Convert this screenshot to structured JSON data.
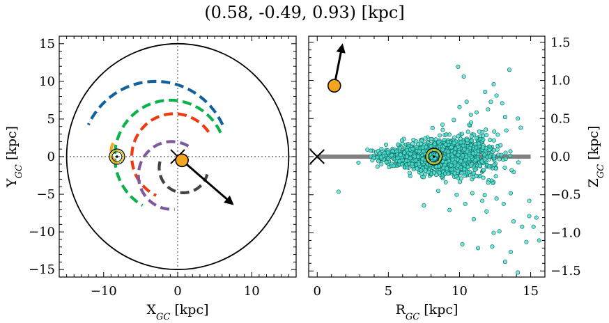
{
  "title": "(0.58, -0.49, 0.93) [kpc]",
  "colors": {
    "blue": "#1461a0",
    "green": "#0bb14a",
    "red": "#ef3a10",
    "purple": "#7f5a9b",
    "dark": "#444444",
    "orange": "#f5a61e",
    "teal": "#46e2d2",
    "sun_ring": "#d4c20a"
  },
  "chart_data": [
    {
      "type": "scatter",
      "panel": "left",
      "xlabel": "X_GC [kpc]",
      "ylabel": "Y_GC [kpc]",
      "xlabel_main": "X",
      "xlabel_sub": "GC",
      "xlabel_unit": " [kpc]",
      "ylabel_main": "Y",
      "ylabel_sub": "GC",
      "ylabel_unit": " [kpc]",
      "xlim": [
        -16,
        16
      ],
      "ylim": [
        -16,
        16
      ],
      "xticks": [
        -10,
        0,
        10
      ],
      "xtick_labels": [
        "−10",
        "0",
        "10"
      ],
      "yticks": [
        -15,
        -10,
        -5,
        0,
        5,
        10,
        15
      ],
      "ytick_labels": [
        "−15",
        "−10",
        "−5",
        "0",
        "5",
        "10",
        "15"
      ],
      "outer_circle_radius": 15,
      "arms": [
        {
          "color": "blue",
          "radius": 10,
          "start_deg": 25,
          "end_deg": 155,
          "cx": -3,
          "cy": 0
        },
        {
          "color": "green",
          "radius": 7.5,
          "start_deg": 25,
          "end_deg": 240,
          "cx": -1,
          "cy": 0
        },
        {
          "color": "red",
          "radius": 5.7,
          "start_deg": 35,
          "end_deg": 245,
          "cx": -0.5,
          "cy": 0
        },
        {
          "color": "purple",
          "radius": 4.5,
          "start_deg": 60,
          "end_deg": 275,
          "cx": -0.8,
          "cy": -2.5
        },
        {
          "color": "dark",
          "radius": 3.3,
          "start_deg": 165,
          "end_deg": 345,
          "cx": 0.8,
          "cy": -1.5
        },
        {
          "color": "orange",
          "radius": 2.2,
          "start_deg": 150,
          "end_deg": 230,
          "cx": -6.8,
          "cy": 0.7
        }
      ],
      "galactic_center": {
        "x": 0,
        "y": 0
      },
      "sun": {
        "x": -8.2,
        "y": 0
      },
      "object": {
        "x": 0.58,
        "y": -0.49
      },
      "velocity_arrow": {
        "x0": 0.58,
        "y0": -0.49,
        "x1": 7.3,
        "y1": -6.2
      }
    },
    {
      "type": "scatter",
      "panel": "right",
      "xlabel": "R_GC [kpc]",
      "ylabel": "Z_GC [kpc]",
      "xlabel_main": "R",
      "xlabel_sub": "GC",
      "xlabel_unit": " [kpc]",
      "ylabel_main": "Z",
      "ylabel_sub": "GC",
      "ylabel_unit": " [kpc]",
      "xlim": [
        -0.6,
        16
      ],
      "ylim": [
        -1.58,
        1.58
      ],
      "xticks": [
        0,
        5,
        10,
        15
      ],
      "xtick_labels": [
        "0",
        "5",
        "10",
        "15"
      ],
      "yticks": [
        -1.5,
        -1.0,
        -0.5,
        0.0,
        0.5,
        1.0,
        1.5
      ],
      "ytick_labels": [
        "−1.5",
        "−1.0",
        "−0.5",
        "0.0",
        "0.5",
        "1.0",
        "1.5"
      ],
      "disk_line": {
        "x0": 0,
        "x1": 15,
        "y": 0
      },
      "galactic_center": {
        "x": 0,
        "y": 0
      },
      "sun": {
        "x": 8.2,
        "y": 0
      },
      "object": {
        "x": 1.2,
        "y": 0.93
      },
      "velocity_arrow": {
        "x0": 1.2,
        "y0": 0.93,
        "x1": 1.75,
        "y1": 1.45
      },
      "star_cloud": {
        "count": 1600,
        "r_center": 8.5,
        "z_spread": 0.12
      },
      "stars": [
        [
          9.9,
          1.18
        ],
        [
          10.3,
          1.05
        ],
        [
          13.5,
          1.14
        ],
        [
          12.6,
          0.8
        ],
        [
          12.0,
          0.62
        ],
        [
          11.8,
          0.85
        ],
        [
          10.5,
          0.72
        ],
        [
          14.3,
          0.38
        ],
        [
          13.2,
          0.52
        ],
        [
          12.4,
          0.95
        ],
        [
          10.8,
          0.55
        ],
        [
          13.0,
          0.7
        ],
        [
          11.2,
          0.58
        ],
        [
          9.6,
          0.48
        ],
        [
          12.2,
          0.72
        ],
        [
          14.1,
          0.5
        ],
        [
          8.8,
          0.42
        ],
        [
          10.0,
          0.65
        ],
        [
          2.9,
          -0.08
        ],
        [
          1.5,
          -0.46
        ],
        [
          7.5,
          -0.64
        ],
        [
          10.2,
          -1.15
        ],
        [
          11.3,
          -1.2
        ],
        [
          13.2,
          -1.38
        ],
        [
          14.1,
          -1.52
        ],
        [
          14.7,
          -1.12
        ],
        [
          15.2,
          -0.92
        ],
        [
          15.6,
          -1.1
        ],
        [
          14.9,
          -0.78
        ],
        [
          13.6,
          -1.25
        ],
        [
          12.3,
          -1.18
        ],
        [
          13.8,
          -0.85
        ],
        [
          12.8,
          -0.98
        ],
        [
          11.9,
          -0.72
        ],
        [
          10.4,
          -0.62
        ],
        [
          13.1,
          -0.62
        ],
        [
          14.4,
          -0.92
        ],
        [
          9.3,
          -0.7
        ],
        [
          11.0,
          -0.82
        ],
        [
          12.6,
          -0.55
        ],
        [
          8.5,
          -0.45
        ],
        [
          10.9,
          -0.48
        ],
        [
          14.9,
          -0.58
        ],
        [
          13.6,
          -0.48
        ],
        [
          15.4,
          -0.8
        ],
        [
          12.4,
          -1.0
        ],
        [
          11.6,
          -0.58
        ],
        [
          9.8,
          -0.5
        ]
      ]
    }
  ]
}
